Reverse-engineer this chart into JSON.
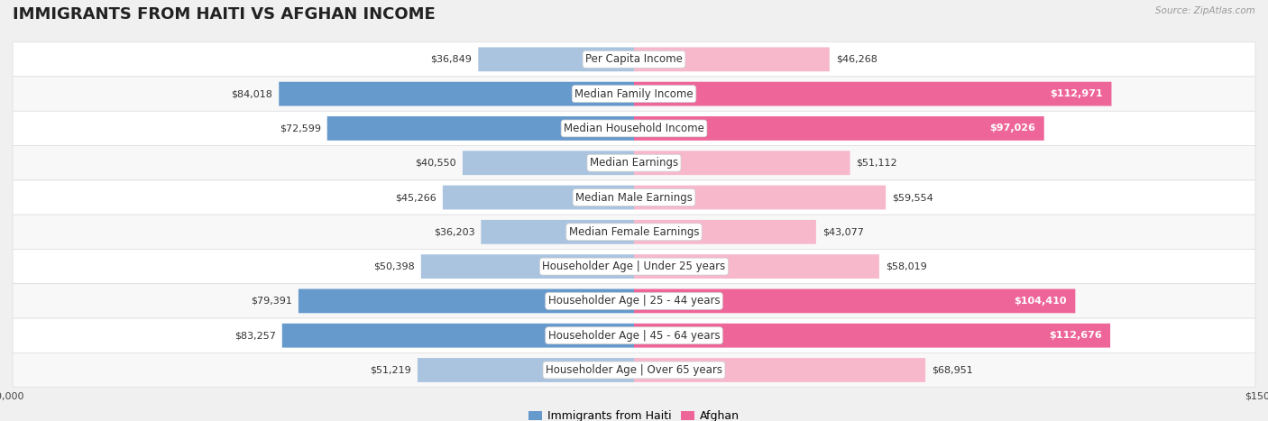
{
  "title": "IMMIGRANTS FROM HAITI VS AFGHAN INCOME",
  "source": "Source: ZipAtlas.com",
  "categories": [
    "Per Capita Income",
    "Median Family Income",
    "Median Household Income",
    "Median Earnings",
    "Median Male Earnings",
    "Median Female Earnings",
    "Householder Age | Under 25 years",
    "Householder Age | 25 - 44 years",
    "Householder Age | 45 - 64 years",
    "Householder Age | Over 65 years"
  ],
  "haiti_values": [
    36849,
    84018,
    72599,
    40550,
    45266,
    36203,
    50398,
    79391,
    83257,
    51219
  ],
  "afghan_values": [
    46268,
    112971,
    97026,
    51112,
    59554,
    43077,
    58019,
    104410,
    112676,
    68951
  ],
  "haiti_color_light": "#aac4e0",
  "haiti_color_dark": "#6699cc",
  "afghan_color_light": "#f7b8cc",
  "afghan_color_dark": "#ee6699",
  "max_value": 150000,
  "background_color": "#f0f0f0",
  "row_bg_even": "#f8f8f8",
  "row_bg_odd": "#ffffff",
  "legend_haiti": "Immigrants from Haiti",
  "legend_afghan": "Afghan",
  "title_fontsize": 13,
  "label_fontsize": 8.5,
  "value_fontsize": 8,
  "axis_label_fontsize": 8
}
